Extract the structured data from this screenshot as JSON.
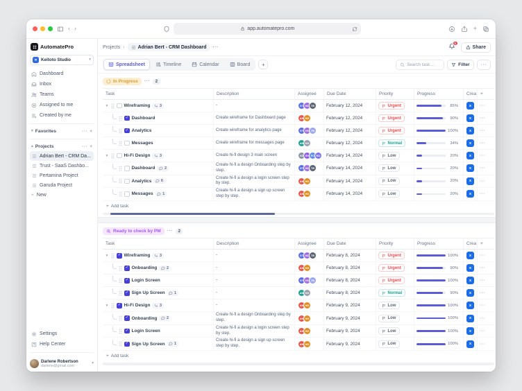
{
  "browser": {
    "url": "app.automatepro.com"
  },
  "sidebar": {
    "logo_text": "AutomatePro",
    "workspace_name": "Keitoto Studio",
    "nav": [
      {
        "label": "Dashboard",
        "icon": "home-icon"
      },
      {
        "label": "Inbox",
        "icon": "inbox-icon"
      },
      {
        "label": "Teams",
        "icon": "users-icon"
      },
      {
        "label": "Assigned to me",
        "icon": "target-icon"
      },
      {
        "label": "Created by me",
        "icon": "list-plus-icon"
      }
    ],
    "sections": {
      "favorites": "Favorites",
      "projects": "Projects"
    },
    "projects": [
      {
        "label": "Adrian Bert - CRM Da...",
        "active": true
      },
      {
        "label": "Trust - SaaS Dashbo...",
        "active": false
      },
      {
        "label": "Pertamina Project",
        "active": false
      },
      {
        "label": "Garuda Project",
        "active": false
      }
    ],
    "new_label": "New",
    "settings_label": "Settings",
    "help_label": "Help Center",
    "user": {
      "name": "Darlene Robertson",
      "email": "darlene@gmail.com"
    }
  },
  "header": {
    "breadcrumb_root": "Projects",
    "title": "Adrian Bert - CRM Dashboard",
    "notification_count": "1",
    "share_label": "Share"
  },
  "toolbar": {
    "tabs": [
      {
        "label": "Spreadsheet",
        "icon": "grid-icon",
        "active": true
      },
      {
        "label": "Timeline",
        "icon": "timeline-icon",
        "active": false
      },
      {
        "label": "Calendar",
        "icon": "calendar-icon",
        "active": false
      },
      {
        "label": "Board",
        "icon": "board-icon",
        "active": false
      }
    ],
    "search_placeholder": "Search task....",
    "filter_label": "Filter"
  },
  "table": {
    "columns": [
      "Task",
      "Description",
      "Assignee",
      "Due Date",
      "Priority",
      "Progress",
      "Crea"
    ],
    "add_task_label": "Add task",
    "crea_icon_letter": "x"
  },
  "avatar_sets": {
    "trio_a": [
      {
        "initials": "GT",
        "color": "#5a6ee0"
      },
      {
        "initials": "HC",
        "color": "#a06ee0"
      },
      {
        "initials": "TB",
        "color": "#596273"
      }
    ],
    "trio_light": [
      {
        "initials": "GT",
        "color": "#5a6ee0"
      },
      {
        "initials": "HC",
        "color": "#a06ee0"
      },
      {
        "initials": "TB",
        "color": "#9aa6ee"
      }
    ],
    "pair_red": [
      {
        "initials": "AN",
        "color": "#e4574d"
      },
      {
        "initials": "HG",
        "color": "#df8e1f"
      }
    ],
    "pair_teal": [
      {
        "initials": "AN",
        "color": "#23a091"
      },
      {
        "initials": "HG",
        "color": "#9aa1ad"
      }
    ],
    "quad": [
      {
        "initials": "HZ",
        "color": "#8a93a3"
      },
      {
        "initials": "RV",
        "color": "#8f5fe8"
      },
      {
        "initials": "FC",
        "color": "#5f8fe8"
      },
      {
        "initials": "RO",
        "color": "#7d74ea"
      }
    ]
  },
  "groups": [
    {
      "label": "In Progress",
      "count": "2",
      "icon": "spinner-icon",
      "badge_bg": "#fbeed3",
      "badge_text": "#dd9d2b",
      "scroll_thumb": true,
      "rows": [
        {
          "type": "parent",
          "checked": false,
          "title": "Wireframing",
          "tag": {
            "kind": "subtasks",
            "count": "3"
          },
          "desc": "-",
          "avatars": "trio_a",
          "due": "February 12, 2024",
          "priority": "Urgent",
          "progress": 85
        },
        {
          "type": "sub",
          "checked": true,
          "title": "Dashboard",
          "tag": null,
          "desc": "Create wireframe for Dashboard page",
          "avatars": "pair_red",
          "due": "February 12, 2024",
          "priority": "Urgent",
          "progress": 90
        },
        {
          "type": "sub",
          "checked": true,
          "title": "Analytics",
          "tag": null,
          "desc": "Create wireframe for analytics page",
          "avatars": "trio_light",
          "due": "February 12, 2024",
          "priority": "Urgent",
          "progress": 100
        },
        {
          "type": "sub",
          "checked": false,
          "title": "Messages",
          "tag": null,
          "desc": "Create wireframe for messages page",
          "avatars": "pair_teal",
          "due": "February 12, 2024",
          "priority": "Normal",
          "progress": 34
        },
        {
          "type": "parent",
          "checked": false,
          "title": "Hi-Fi Design",
          "tag": {
            "kind": "subtasks",
            "count": "3"
          },
          "desc": "Create hi-fi design 3 main screen",
          "avatars": "quad",
          "due": "February 14, 2024",
          "priority": "Low",
          "progress": 20
        },
        {
          "type": "sub",
          "checked": false,
          "title": "Dashboard",
          "tag": {
            "kind": "comments",
            "count": "2"
          },
          "desc": "Create hi-fi a design Onboarding step by step.",
          "avatars": "trio_a",
          "due": "February 14, 2024",
          "priority": "Low",
          "progress": 20
        },
        {
          "type": "sub",
          "checked": false,
          "title": "Analytics",
          "tag": {
            "kind": "comments",
            "count": "6"
          },
          "desc": "Create hi-fi a design a login screen step by step.",
          "avatars": "pair_red",
          "due": "February 14, 2024",
          "priority": "Low",
          "progress": 20
        },
        {
          "type": "sub",
          "checked": false,
          "title": "Messages",
          "tag": {
            "kind": "comments",
            "count": "1"
          },
          "desc": "Create hi-fi a design a sign up screen step by step.",
          "avatars": "pair_red",
          "due": "February 14, 2024",
          "priority": "Low",
          "progress": 20
        }
      ]
    },
    {
      "label": "Ready to check by PM",
      "count": "2",
      "icon": "zoom-in-icon",
      "badge_bg": "#f4e7fd",
      "badge_text": "#a855f7",
      "scroll_thumb": false,
      "rows": [
        {
          "type": "parent",
          "checked": true,
          "title": "Wireframing",
          "tag": {
            "kind": "subtasks",
            "count": "3"
          },
          "desc": "-",
          "avatars": "trio_a",
          "due": "February 8, 2024",
          "priority": "Urgent",
          "progress": 100
        },
        {
          "type": "sub",
          "checked": true,
          "title": "Onboarding",
          "tag": {
            "kind": "comments",
            "count": "2"
          },
          "desc": "-",
          "avatars": "pair_red",
          "due": "February 8, 2024",
          "priority": "Urgent",
          "progress": 90
        },
        {
          "type": "sub",
          "checked": true,
          "title": "Login Screen",
          "tag": null,
          "desc": "-",
          "avatars": "trio_light",
          "due": "February 8, 2024",
          "priority": "Urgent",
          "progress": 100
        },
        {
          "type": "sub",
          "checked": true,
          "title": "Sign Up Screen",
          "tag": {
            "kind": "comments",
            "count": "1"
          },
          "desc": "-",
          "avatars": "pair_teal",
          "due": "February 8, 2024",
          "priority": "Normal",
          "progress": 90
        },
        {
          "type": "parent",
          "checked": true,
          "title": "Hi-Fi Design",
          "tag": {
            "kind": "subtasks",
            "count": "3"
          },
          "desc": "-",
          "avatars": "pair_red",
          "due": "February 9, 2024",
          "priority": "Low",
          "progress": 100
        },
        {
          "type": "sub",
          "checked": true,
          "title": "Onboarding",
          "tag": {
            "kind": "comments",
            "count": "2"
          },
          "desc": "Create hi-fi a design Onboarding step by step.",
          "avatars": "pair_red",
          "due": "February 9, 2024",
          "priority": "Low",
          "progress": 100
        },
        {
          "type": "sub",
          "checked": true,
          "title": "Login Screen",
          "tag": null,
          "desc": "Create hi-fi a design a login screen step by step.",
          "avatars": "pair_red",
          "due": "February 9, 2024",
          "priority": "Low",
          "progress": 100
        },
        {
          "type": "sub",
          "checked": true,
          "title": "Sign Up Screen",
          "tag": {
            "kind": "comments",
            "count": "1"
          },
          "desc": "Create hi-fi a design a sign up screen step by step.",
          "avatars": "pair_red",
          "due": "February 9, 2024",
          "priority": "Low",
          "progress": 100
        }
      ]
    }
  ],
  "colors": {
    "accent": "#5b5bd6",
    "progress": "#5b5bd6",
    "urgent": "#e5484d",
    "normal": "#19a394",
    "low": "#5b6575",
    "scroll_thumb": "#5d6a97",
    "crea_icon_bg": "#1a6ce8",
    "notification": "#e5484d"
  }
}
